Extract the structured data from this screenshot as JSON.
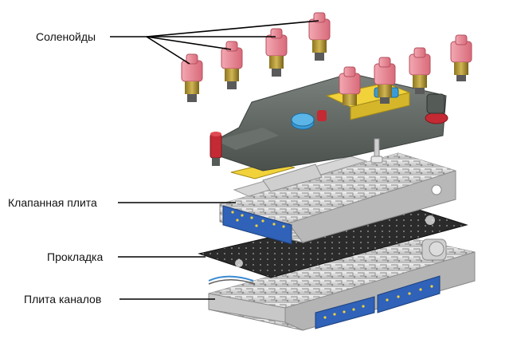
{
  "labels": {
    "solenoids": "Соленойды",
    "valve_plate": "Клапанная плита",
    "gasket": "Прокладка",
    "channel_plate": "Плита каналов"
  },
  "colors": {
    "metal_light": "#e4e4e4",
    "metal_mid": "#bcbcbc",
    "metal_dark": "#7e7e7e",
    "frame_dark": "#5d6460",
    "solenoid_pink": "#e98a97",
    "solenoid_brass": "#b59a3a",
    "connector_blue": "#2f62b8",
    "accent_yellow": "#f1d23a",
    "accent_cyan": "#3a9bd6",
    "accent_red": "#c42a33",
    "gasket": "#2b2b2b"
  }
}
